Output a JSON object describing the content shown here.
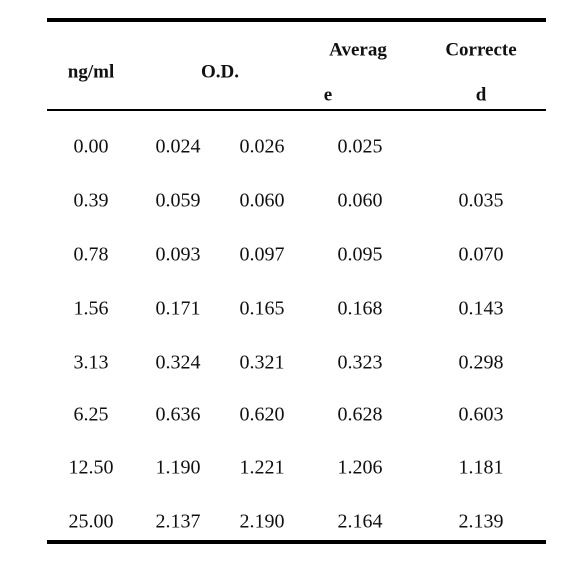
{
  "table": {
    "header": {
      "concentration": "ng/ml",
      "od": "O.D.",
      "average": [
        "Averag",
        "e"
      ],
      "corrected": [
        "Correcte",
        "d"
      ]
    },
    "rows": [
      [
        "0.00",
        "0.024",
        "0.026",
        "0.025",
        null
      ],
      [
        "0.39",
        "0.059",
        "0.060",
        "0.060",
        "0.035"
      ],
      [
        "0.78",
        "0.093",
        "0.097",
        "0.095",
        "0.070"
      ],
      [
        "1.56",
        "0.171",
        "0.165",
        "0.168",
        "0.143"
      ],
      [
        "3.13",
        "0.324",
        "0.321",
        "0.323",
        "0.298"
      ],
      [
        "6.25",
        "0.636",
        "0.620",
        "0.628",
        "0.603"
      ],
      [
        "12.50",
        "1.190",
        "1.221",
        "1.206",
        "1.181"
      ],
      [
        "25.00",
        "2.137",
        "2.190",
        "2.164",
        "2.139"
      ]
    ]
  }
}
